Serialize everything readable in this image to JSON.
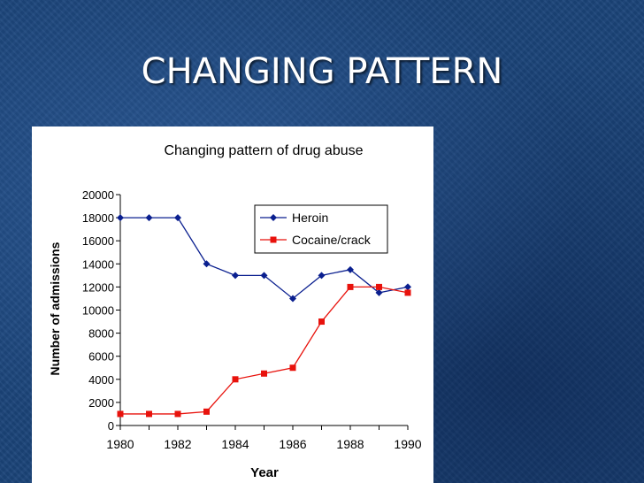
{
  "slide": {
    "title": "CHANGING PATTERN"
  },
  "colors": {
    "heroin": "#0a1f8f",
    "cocaine": "#e8120c",
    "background": "#1b4479"
  },
  "chart_data": {
    "type": "line",
    "title": "Changing pattern of drug abuse",
    "xlabel": "Year",
    "ylabel": "Number of admissions",
    "xlim": [
      1980,
      1990
    ],
    "ylim": [
      0,
      20000
    ],
    "x_ticks": [
      "1980",
      "1982",
      "1984",
      "1986",
      "1988",
      "1990"
    ],
    "y_ticks": [
      "20000",
      "18000",
      "16000",
      "14000",
      "12000",
      "10000",
      "8000",
      "6000",
      "4000",
      "2000",
      "0"
    ],
    "legend_position": "top-right",
    "grid": false,
    "x": [
      1980,
      1981,
      1982,
      1983,
      1984,
      1985,
      1986,
      1987,
      1988,
      1989,
      1990
    ],
    "series": [
      {
        "name": "Heroin",
        "marker": "diamond",
        "color": "#0a1f8f",
        "values": [
          18000,
          18000,
          18000,
          14000,
          13000,
          13000,
          11000,
          13000,
          13500,
          11500,
          12000
        ]
      },
      {
        "name": "Cocaine/crack",
        "marker": "square",
        "color": "#e8120c",
        "values": [
          1000,
          1000,
          1000,
          1200,
          4000,
          4500,
          5000,
          9000,
          12000,
          12000,
          11500
        ]
      }
    ]
  }
}
